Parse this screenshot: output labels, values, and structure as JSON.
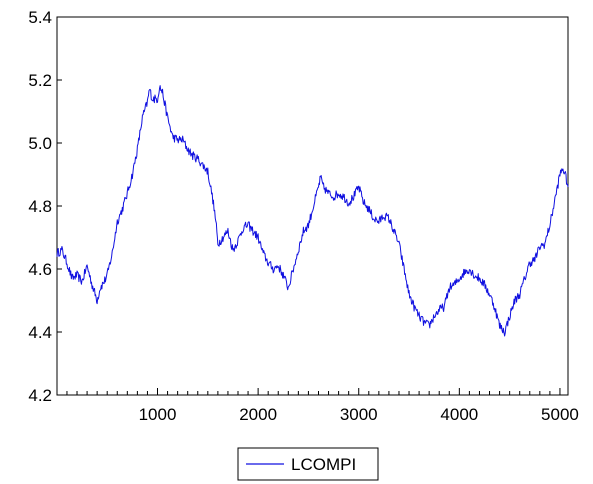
{
  "chart_data": {
    "type": "line",
    "title": "",
    "xlabel": "",
    "ylabel": "",
    "xlim": [
      1,
      5080
    ],
    "ylim": [
      4.2,
      5.4
    ],
    "x_ticks": [
      1000,
      2000,
      3000,
      4000,
      5000
    ],
    "x_tick_labels": [
      "1000",
      "2000",
      "3000",
      "4000",
      "5000"
    ],
    "y_ticks": [
      4.2,
      4.4,
      4.6,
      4.8,
      5.0,
      5.2,
      5.4
    ],
    "y_tick_labels": [
      "4.2",
      "4.4",
      "4.6",
      "4.8",
      "5.0",
      "5.2",
      "5.4"
    ],
    "grid": false,
    "legend_position": "bottom-center",
    "series": [
      {
        "name": "LCOMPI",
        "color": "#1010e0",
        "x": [
          1,
          50,
          100,
          150,
          200,
          250,
          300,
          350,
          380,
          400,
          430,
          470,
          500,
          550,
          600,
          650,
          700,
          750,
          800,
          850,
          900,
          920,
          950,
          1000,
          1020,
          1050,
          1100,
          1150,
          1200,
          1250,
          1300,
          1350,
          1400,
          1450,
          1500,
          1550,
          1580,
          1600,
          1650,
          1700,
          1750,
          1800,
          1850,
          1900,
          1950,
          2000,
          2050,
          2100,
          2150,
          2200,
          2250,
          2300,
          2350,
          2400,
          2450,
          2500,
          2550,
          2600,
          2620,
          2650,
          2700,
          2750,
          2800,
          2850,
          2900,
          2950,
          3000,
          3050,
          3100,
          3150,
          3200,
          3250,
          3300,
          3350,
          3400,
          3450,
          3500,
          3550,
          3600,
          3650,
          3700,
          3750,
          3800,
          3850,
          3900,
          3950,
          4000,
          4050,
          4100,
          4150,
          4200,
          4250,
          4300,
          4350,
          4400,
          4450,
          4500,
          4550,
          4600,
          4650,
          4700,
          4750,
          4800,
          4850,
          4900,
          4950,
          5000,
          5030,
          5060,
          5080
        ],
        "y": [
          4.65,
          4.66,
          4.62,
          4.57,
          4.58,
          4.56,
          4.61,
          4.55,
          4.52,
          4.5,
          4.54,
          4.56,
          4.58,
          4.65,
          4.75,
          4.79,
          4.84,
          4.9,
          4.98,
          5.08,
          5.13,
          5.17,
          5.14,
          5.14,
          5.18,
          5.16,
          5.08,
          5.02,
          5.01,
          5.01,
          4.98,
          4.96,
          4.95,
          4.93,
          4.91,
          4.82,
          4.75,
          4.68,
          4.7,
          4.72,
          4.66,
          4.69,
          4.73,
          4.74,
          4.72,
          4.7,
          4.65,
          4.62,
          4.6,
          4.61,
          4.58,
          4.54,
          4.6,
          4.66,
          4.72,
          4.74,
          4.8,
          4.86,
          4.89,
          4.86,
          4.84,
          4.83,
          4.84,
          4.83,
          4.81,
          4.83,
          4.86,
          4.81,
          4.79,
          4.76,
          4.75,
          4.77,
          4.76,
          4.72,
          4.68,
          4.6,
          4.52,
          4.48,
          4.45,
          4.43,
          4.42,
          4.45,
          4.47,
          4.48,
          4.54,
          4.55,
          4.57,
          4.59,
          4.6,
          4.58,
          4.57,
          4.55,
          4.52,
          4.48,
          4.42,
          4.4,
          4.45,
          4.5,
          4.52,
          4.57,
          4.62,
          4.63,
          4.67,
          4.68,
          4.74,
          4.82,
          4.9,
          4.92,
          4.89,
          4.86
        ]
      }
    ]
  }
}
